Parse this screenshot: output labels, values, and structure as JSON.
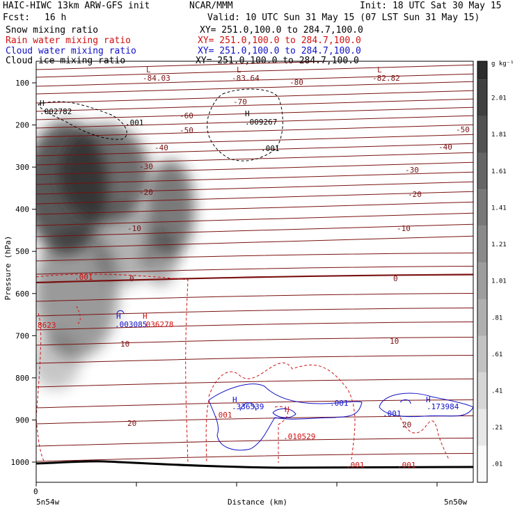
{
  "header": {
    "model": "HAIC-HIWC 13km ARW-GFS init",
    "center": "NCAR/MMM",
    "init": "Init: 18 UTC Sat 30 May 15",
    "fcst_label": "Fcst:",
    "fcst_value": "16 h",
    "valid": "Valid: 10 UTC Sun 31 May 15 (07 LST Sun 31 May 15)"
  },
  "fields": [
    {
      "name": "Snow mixing ratio",
      "xy": "XY= 251.0,100.0 to 284.7,100.0",
      "color": "#000000"
    },
    {
      "name": "Rain water mixing ratio",
      "xy": "XY= 251.0,100.0 to 284.7,100.0",
      "color": "#d01010"
    },
    {
      "name": "Cloud water mixing ratio",
      "xy": "XY= 251.0,100.0 to 284.7,100.0",
      "color": "#1010c8"
    },
    {
      "name": "Cloud ice mixing ratio",
      "xy": "XY= 251.0,100.0 to 284.7,100.0",
      "color": "#000000"
    }
  ],
  "chart_data": {
    "type": "heatmap",
    "xlabel": "Distance (km)",
    "ylabel": "Pressure (hPa)",
    "x_ticks": [
      "0"
    ],
    "x_start_label": "5n54w",
    "x_end_label": "5n50w",
    "y_ticks": [
      100,
      200,
      300,
      400,
      500,
      600,
      700,
      800,
      900,
      1000
    ],
    "ylim": [
      1050,
      50
    ],
    "colorbar_unit": "g kg⁻¹",
    "colorbar_levels": [
      ".01",
      ".21",
      ".41",
      ".61",
      ".81",
      "1.01",
      "1.21",
      "1.41",
      "1.61",
      "1.81",
      "2.01"
    ],
    "temperature_labels": [
      "-84.03",
      "-83.64",
      "-82.82",
      "-80",
      "-70",
      "-60",
      "-50",
      "-50",
      "-40",
      "-40",
      "-30",
      "-30",
      "-20",
      "-20",
      "-10",
      "-10",
      "0",
      "0",
      "10",
      "10",
      "20",
      "20"
    ],
    "extremum_labels": [
      {
        "mark": "L",
        "value": "",
        "color": "#8b1a1a"
      },
      {
        "mark": "L",
        "value": "",
        "color": "#8b1a1a"
      },
      {
        "mark": "L",
        "value": "",
        "color": "#8b1a1a"
      },
      {
        "mark": "H",
        "value": ".002782",
        "color": "#000000"
      },
      {
        "mark": "H",
        "value": ".009267",
        "color": "#000000"
      },
      {
        "mark": "H",
        "value": ".003085",
        "color": "#1010c8"
      },
      {
        "mark": "H",
        "value": ".036278",
        "color": "#d01010"
      },
      {
        "mark": "H",
        "value": ".336539",
        "color": "#1010c8"
      },
      {
        "mark": "H",
        "value": ".010529",
        "color": "#d01010"
      },
      {
        "mark": "H",
        "value": ".173984",
        "color": "#1010c8"
      }
    ],
    "contour_labels": [
      ".001",
      ".001",
      ".001",
      ".001",
      ".001",
      ".001",
      ".001",
      ".001",
      "8623"
    ]
  }
}
